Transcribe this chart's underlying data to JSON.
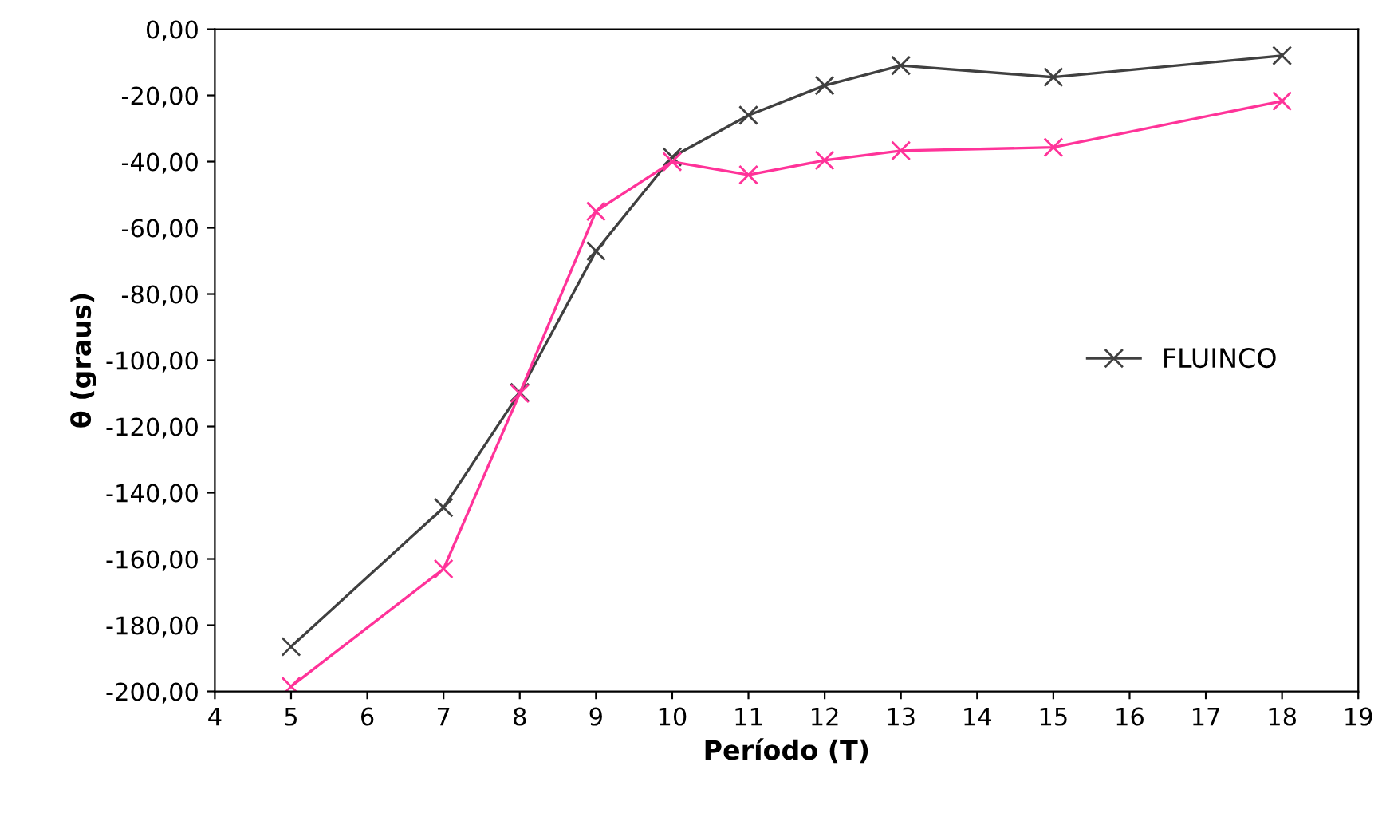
{
  "chart_data": {
    "type": "line",
    "xlabel": "Período (T)",
    "ylabel": "θ (graus)",
    "x": [
      5,
      7,
      8,
      9,
      10,
      11,
      12,
      13,
      15,
      18
    ],
    "series": [
      {
        "name": "FLUINCO",
        "color": "#404040",
        "values": [
          -186.5,
          -144.5,
          -109.7,
          -67,
          -38.6,
          -26,
          -17,
          -11,
          -14.5,
          -8
        ]
      },
      {
        "color": "#ff3399",
        "values": [
          -198.5,
          -163,
          -110,
          -55,
          -40,
          -44,
          -39.6,
          -36.7,
          -35.7,
          -21.7
        ]
      }
    ],
    "xlim": [
      4,
      19
    ],
    "xticks": [
      4,
      5,
      6,
      7,
      8,
      9,
      10,
      11,
      12,
      13,
      14,
      15,
      16,
      17,
      18,
      19
    ],
    "ylim": [
      -200,
      0
    ],
    "yticks": [
      {
        "value": -200,
        "label": "-200,00"
      },
      {
        "value": -180,
        "label": "-180,00"
      },
      {
        "value": -160,
        "label": "-160,00"
      },
      {
        "value": -140,
        "label": "-140,00"
      },
      {
        "value": -120,
        "label": "-120,00"
      },
      {
        "value": -100,
        "label": "-100,00"
      },
      {
        "value": -80,
        "label": "-80,00"
      },
      {
        "value": -60,
        "label": "-60,00"
      },
      {
        "value": -40,
        "label": "-40,00"
      },
      {
        "value": -20,
        "label": "-20,00"
      },
      {
        "value": 0,
        "label": "0,00"
      }
    ],
    "marker": "cross",
    "grid": false,
    "legend": "right"
  }
}
